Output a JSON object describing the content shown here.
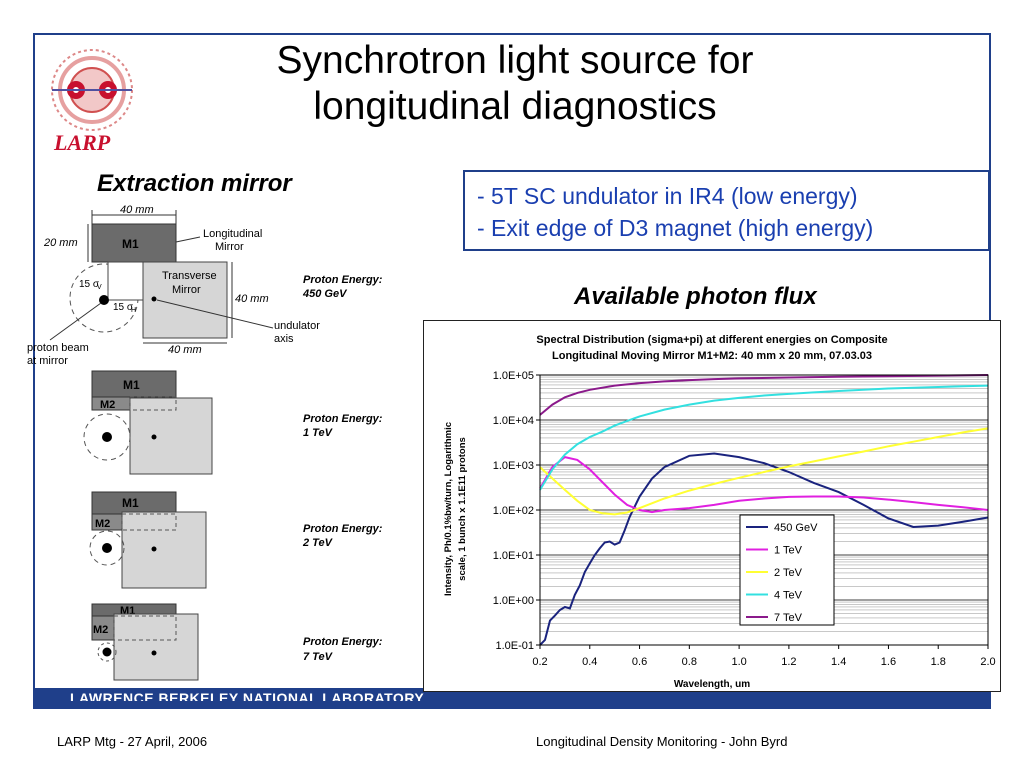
{
  "slide": {
    "title_line1": "Synchrotron light source for",
    "title_line2": "longitudinal diagnostics",
    "logo_text": "LARP",
    "left_heading": "Extraction mirror",
    "right_heading": "Available photon flux",
    "bullets": [
      "- 5T SC undulator in IR4 (low energy)",
      "- Exit edge of D3 magnet (high energy)"
    ],
    "band_text": "LAWRENCE BERKELEY NATIONAL LABORATORY",
    "footer_left": "LARP Mtg  -  27 April, 2006",
    "footer_right": "Longitudinal Density Monitoring  -  John Byrd",
    "accent": "#1f3f8a"
  },
  "diagram": {
    "dim_width_top": "40 mm",
    "dim_height_left": "20 mm",
    "dim_height_right": "40 mm",
    "dim_width_bottom": "40 mm",
    "m1": "M1",
    "m2": "M2",
    "longitudinal_mirror_1": "Longitudinal",
    "longitudinal_mirror_2": "Mirror",
    "transverse_mirror_1": "Transverse",
    "transverse_mirror_2": "Mirror",
    "sigma_v": "15 σ",
    "sigma_v_sub": "V",
    "sigma_h": "15 σ",
    "sigma_h_sub": "H",
    "undulator_1": "undulator",
    "undulator_2": "axis",
    "beam_1": "proton beam",
    "beam_2": "at mirror",
    "energy_label": "Proton Energy:",
    "energies": [
      "450 GeV",
      "1 TeV",
      "2 TeV",
      "7 TeV"
    ]
  },
  "chart_data": {
    "type": "line",
    "title_line1": "Spectral Distribution (sigma+pi) at different energies on Composite",
    "title_line2": "Longitudinal Moving Mirror M1+M2: 40 mm x 20 mm, 07.03.03",
    "xlabel": "Wavelength, um",
    "ylabel_line1": "Intensity, Ph/0.1%bw/turn, Logarithmic",
    "ylabel_line2": "scale, 1 bunch x 1.1E11 protons",
    "yscale": "log",
    "xlim": [
      0.2,
      2.0
    ],
    "ylim": [
      0.1,
      100000
    ],
    "x_ticks": [
      "0.2",
      "0.4",
      "0.6",
      "0.8",
      "1.0",
      "1.2",
      "1.4",
      "1.6",
      "1.8",
      "2.0"
    ],
    "y_ticks": [
      "1.0E-01",
      "1.0E+00",
      "1.0E+01",
      "1.0E+02",
      "1.0E+03",
      "1.0E+04",
      "1.0E+05"
    ],
    "grid": true,
    "legend_position": "bottom-right",
    "series": [
      {
        "name": "450 GeV",
        "color": "#1a237e",
        "x": [
          0.2,
          0.22,
          0.24,
          0.26,
          0.28,
          0.3,
          0.32,
          0.34,
          0.36,
          0.38,
          0.4,
          0.42,
          0.44,
          0.46,
          0.48,
          0.5,
          0.52,
          0.54,
          0.56,
          0.6,
          0.65,
          0.7,
          0.8,
          0.9,
          1.0,
          1.1,
          1.2,
          1.3,
          1.4,
          1.5,
          1.6,
          1.7,
          1.8,
          1.9,
          2.0
        ],
        "y": [
          0.1,
          0.13,
          0.35,
          0.45,
          0.6,
          0.7,
          0.65,
          1.3,
          2.1,
          4.2,
          6.5,
          10,
          14,
          19,
          20,
          17,
          19,
          35,
          70,
          200,
          500,
          900,
          1600,
          1800,
          1500,
          1100,
          700,
          400,
          250,
          130,
          65,
          42,
          45,
          55,
          68
        ]
      },
      {
        "name": "1 TeV",
        "color": "#e020e0",
        "x": [
          0.2,
          0.25,
          0.3,
          0.35,
          0.4,
          0.45,
          0.5,
          0.55,
          0.6,
          0.65,
          0.7,
          0.8,
          0.9,
          1.0,
          1.1,
          1.2,
          1.3,
          1.4,
          1.5,
          1.6,
          1.7,
          1.8,
          1.9,
          2.0
        ],
        "y": [
          300,
          900,
          1500,
          1300,
          800,
          420,
          220,
          130,
          100,
          90,
          100,
          110,
          130,
          160,
          180,
          195,
          200,
          200,
          190,
          170,
          150,
          130,
          115,
          100
        ]
      },
      {
        "name": "2 TeV",
        "color": "#ffff33",
        "x": [
          0.2,
          0.25,
          0.3,
          0.35,
          0.4,
          0.45,
          0.5,
          0.55,
          0.6,
          0.7,
          0.8,
          0.9,
          1.0,
          1.1,
          1.2,
          1.3,
          1.4,
          1.5,
          1.6,
          1.7,
          1.8,
          1.9,
          2.0
        ],
        "y": [
          900,
          500,
          280,
          160,
          100,
          85,
          80,
          88,
          110,
          180,
          270,
          380,
          520,
          700,
          930,
          1200,
          1550,
          2000,
          2600,
          3300,
          4200,
          5300,
          6500
        ]
      },
      {
        "name": "4 TeV",
        "color": "#33e0e0",
        "x": [
          0.2,
          0.25,
          0.3,
          0.35,
          0.4,
          0.45,
          0.5,
          0.6,
          0.7,
          0.8,
          0.9,
          1.0,
          1.1,
          1.2,
          1.3,
          1.4,
          1.5,
          1.6,
          1.7,
          1.8,
          1.9,
          2.0
        ],
        "y": [
          280,
          800,
          1700,
          2900,
          4200,
          5500,
          7500,
          12000,
          17000,
          22000,
          27000,
          31000,
          35000,
          38000,
          41000,
          44000,
          47000,
          50000,
          52000,
          54000,
          56000,
          58000
        ]
      },
      {
        "name": "7 TeV",
        "color": "#8b1a8b",
        "x": [
          0.2,
          0.25,
          0.3,
          0.35,
          0.4,
          0.5,
          0.6,
          0.7,
          0.8,
          0.9,
          1.0,
          1.2,
          1.4,
          1.6,
          1.8,
          2.0
        ],
        "y": [
          13000,
          22000,
          32000,
          40000,
          47000,
          58000,
          66000,
          72000,
          77000,
          81000,
          84000,
          88000,
          91000,
          94000,
          97000,
          100000
        ]
      }
    ]
  }
}
